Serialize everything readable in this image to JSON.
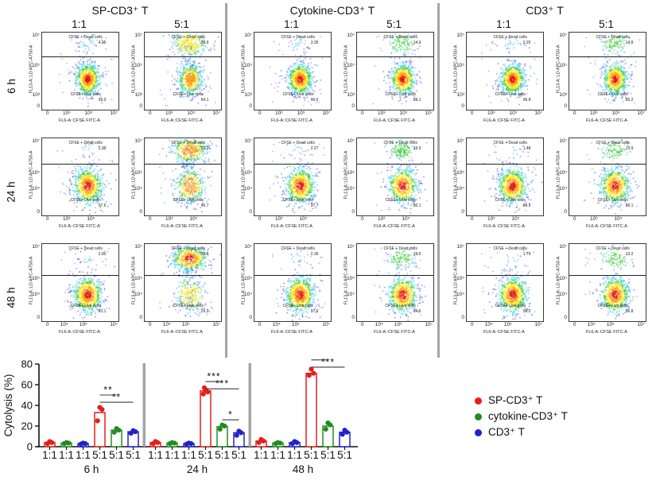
{
  "flow": {
    "x_axis_label": "FL6-A::CFSE FITC-A",
    "y_axis_label": "FL13-A::LD APC-A750-A",
    "dead_gate_label": "CFSE + Dead cells",
    "live_gate_label": "CFSE+ Live cells",
    "row_labels": [
      "6 h",
      "24 h",
      "48 h"
    ],
    "x_ticks_by_row": [
      [
        "0",
        "10³",
        "10⁵",
        "10⁷"
      ],
      [
        "0",
        "10³",
        "10⁵"
      ],
      [
        "0",
        "10⁴",
        "10⁵",
        "10⁷"
      ]
    ],
    "y_ticks_by_row": [
      [
        "10⁷",
        "10⁵",
        "10³",
        "0"
      ],
      [
        "10⁷",
        "10⁵",
        "10⁴",
        "0"
      ],
      [
        "10⁷",
        "10⁵",
        "10⁴",
        "0"
      ]
    ],
    "separator_color": "#a4a4a4",
    "groups": [
      {
        "title": "SP-CD3⁺ T",
        "ratios": [
          "1:1",
          "5:1"
        ],
        "plots": [
          {
            "row": "6 h",
            "ratio": "1:1",
            "dead_pct": "4.95",
            "live_pct": "95.0"
          },
          {
            "row": "6 h",
            "ratio": "5:1",
            "dead_pct": "35.9",
            "live_pct": "64.1"
          },
          {
            "row": "24 h",
            "ratio": "1:1",
            "dead_pct": "2.39",
            "live_pct": "97.6"
          },
          {
            "row": "24 h",
            "ratio": "5:1",
            "dead_pct": "53.3",
            "live_pct": "46.7"
          },
          {
            "row": "48 h",
            "ratio": "1:1",
            "dead_pct": "2.90",
            "live_pct": "97.1"
          },
          {
            "row": "48 h",
            "ratio": "5:1",
            "dead_pct": "70.8",
            "live_pct": "29.2"
          }
        ]
      },
      {
        "title": "Cytokine-CD3⁺ T",
        "ratios": [
          "1:1",
          "5:1"
        ],
        "plots": [
          {
            "row": "6 h",
            "ratio": "1:1",
            "dead_pct": "3.35",
            "live_pct": "96.6"
          },
          {
            "row": "6 h",
            "ratio": "5:1",
            "dead_pct": "14.9",
            "live_pct": "85.1"
          },
          {
            "row": "24 h",
            "ratio": "1:1",
            "dead_pct": "2.27",
            "live_pct": "97.7"
          },
          {
            "row": "24 h",
            "ratio": "5:1",
            "dead_pct": "19.9",
            "live_pct": "80.1"
          },
          {
            "row": "48 h",
            "ratio": "1:1",
            "dead_pct": "2.36",
            "live_pct": "97.6"
          },
          {
            "row": "48 h",
            "ratio": "5:1",
            "dead_pct": "15.5",
            "live_pct": "84.5"
          }
        ]
      },
      {
        "title": "CD3⁺ T",
        "ratios": [
          "1:1",
          "5:1"
        ],
        "plots": [
          {
            "row": "6 h",
            "ratio": "1:1",
            "dead_pct": "3.20",
            "live_pct": "96.8"
          },
          {
            "row": "6 h",
            "ratio": "5:1",
            "dead_pct": "14.8",
            "live_pct": "85.2"
          },
          {
            "row": "24 h",
            "ratio": "1:1",
            "dead_pct": "1.48",
            "live_pct": "98.5"
          },
          {
            "row": "24 h",
            "ratio": "5:1",
            "dead_pct": "13.9",
            "live_pct": "86.1"
          },
          {
            "row": "48 h",
            "ratio": "1:1",
            "dead_pct": "1.79",
            "live_pct": "98.2"
          },
          {
            "row": "48 h",
            "ratio": "5:1",
            "dead_pct": "13.2",
            "live_pct": "86.8"
          }
        ]
      }
    ]
  },
  "chart_data": {
    "type": "bar",
    "title": "",
    "ylabel": "Cytolysis (%)",
    "xlabel": "",
    "ylim": [
      0,
      80
    ],
    "yticks": [
      0,
      20,
      40,
      60,
      80
    ],
    "grid": false,
    "legend_position": "right",
    "ratio_tick_labels": [
      "1:1",
      "1:1",
      "1:1",
      "5:1",
      "5:1",
      "5:1"
    ],
    "legend": [
      {
        "label": "SP-CD3⁺ T",
        "color": "#e4201c"
      },
      {
        "label": "cytokine-CD3⁺ T",
        "color": "#228B22"
      },
      {
        "label": "CD3⁺ T",
        "color": "#2222cc"
      }
    ],
    "groups": [
      {
        "label": "6 h",
        "bars": [
          {
            "series": "SP-CD3⁺ T",
            "ratio": "1:1",
            "value": 4,
            "points": [
              3,
              4,
              5
            ]
          },
          {
            "series": "cytokine-CD3⁺ T",
            "ratio": "1:1",
            "value": 3.5,
            "points": [
              3,
              3.5,
              4
            ]
          },
          {
            "series": "CD3⁺ T",
            "ratio": "1:1",
            "value": 3,
            "points": [
              2.5,
              3,
              3.5
            ]
          },
          {
            "series": "SP-CD3⁺ T",
            "ratio": "5:1",
            "value": 33,
            "points": [
              25,
              36,
              38
            ]
          },
          {
            "series": "cytokine-CD3⁺ T",
            "ratio": "5:1",
            "value": 16,
            "points": [
              14,
              16,
              17.5
            ]
          },
          {
            "series": "CD3⁺ T",
            "ratio": "5:1",
            "value": 14.5,
            "points": [
              13,
              14.5,
              15.5
            ]
          }
        ],
        "significance": [
          {
            "from": 3,
            "to": 4,
            "label": "**",
            "y": 50
          },
          {
            "from": 3,
            "to": 5,
            "label": "**",
            "y": 43
          }
        ]
      },
      {
        "label": "24 h",
        "bars": [
          {
            "series": "SP-CD3⁺ T",
            "ratio": "1:1",
            "value": 4,
            "points": [
              3,
              4,
              5
            ]
          },
          {
            "series": "cytokine-CD3⁺ T",
            "ratio": "1:1",
            "value": 3.5,
            "points": [
              3,
              3.5,
              4
            ]
          },
          {
            "series": "CD3⁺ T",
            "ratio": "1:1",
            "value": 3,
            "points": [
              2.5,
              3,
              3.5
            ]
          },
          {
            "series": "SP-CD3⁺ T",
            "ratio": "5:1",
            "value": 54,
            "points": [
              51,
              53,
              55,
              57
            ]
          },
          {
            "series": "cytokine-CD3⁺ T",
            "ratio": "5:1",
            "value": 19.5,
            "points": [
              17,
              20,
              21
            ]
          },
          {
            "series": "CD3⁺ T",
            "ratio": "5:1",
            "value": 13.5,
            "points": [
              11,
              13.5,
              15
            ]
          }
        ],
        "significance": [
          {
            "from": 3,
            "to": 4,
            "label": "***",
            "y": 63
          },
          {
            "from": 3,
            "to": 5,
            "label": "***",
            "y": 56
          },
          {
            "from": 4,
            "to": 5,
            "label": "*",
            "y": 26
          }
        ]
      },
      {
        "label": "48 h",
        "bars": [
          {
            "series": "SP-CD3⁺ T",
            "ratio": "1:1",
            "value": 5.5,
            "points": [
              4,
              5.5,
              7
            ]
          },
          {
            "series": "cytokine-CD3⁺ T",
            "ratio": "1:1",
            "value": 3.5,
            "points": [
              3,
              3.5,
              4
            ]
          },
          {
            "series": "CD3⁺ T",
            "ratio": "1:1",
            "value": 4,
            "points": [
              3,
              4,
              5
            ]
          },
          {
            "series": "SP-CD3⁺ T",
            "ratio": "5:1",
            "value": 71,
            "points": [
              69,
              71,
              75
            ]
          },
          {
            "series": "cytokine-CD3⁺ T",
            "ratio": "5:1",
            "value": 20,
            "points": [
              17,
              21,
              23
            ]
          },
          {
            "series": "CD3⁺ T",
            "ratio": "5:1",
            "value": 14,
            "points": [
              12,
              14,
              16
            ]
          }
        ],
        "significance": [
          {
            "from": 3,
            "to": 4,
            "label": "***",
            "y": 84
          },
          {
            "from": 3,
            "to": 5,
            "label": "***",
            "y": 77
          }
        ]
      }
    ]
  }
}
